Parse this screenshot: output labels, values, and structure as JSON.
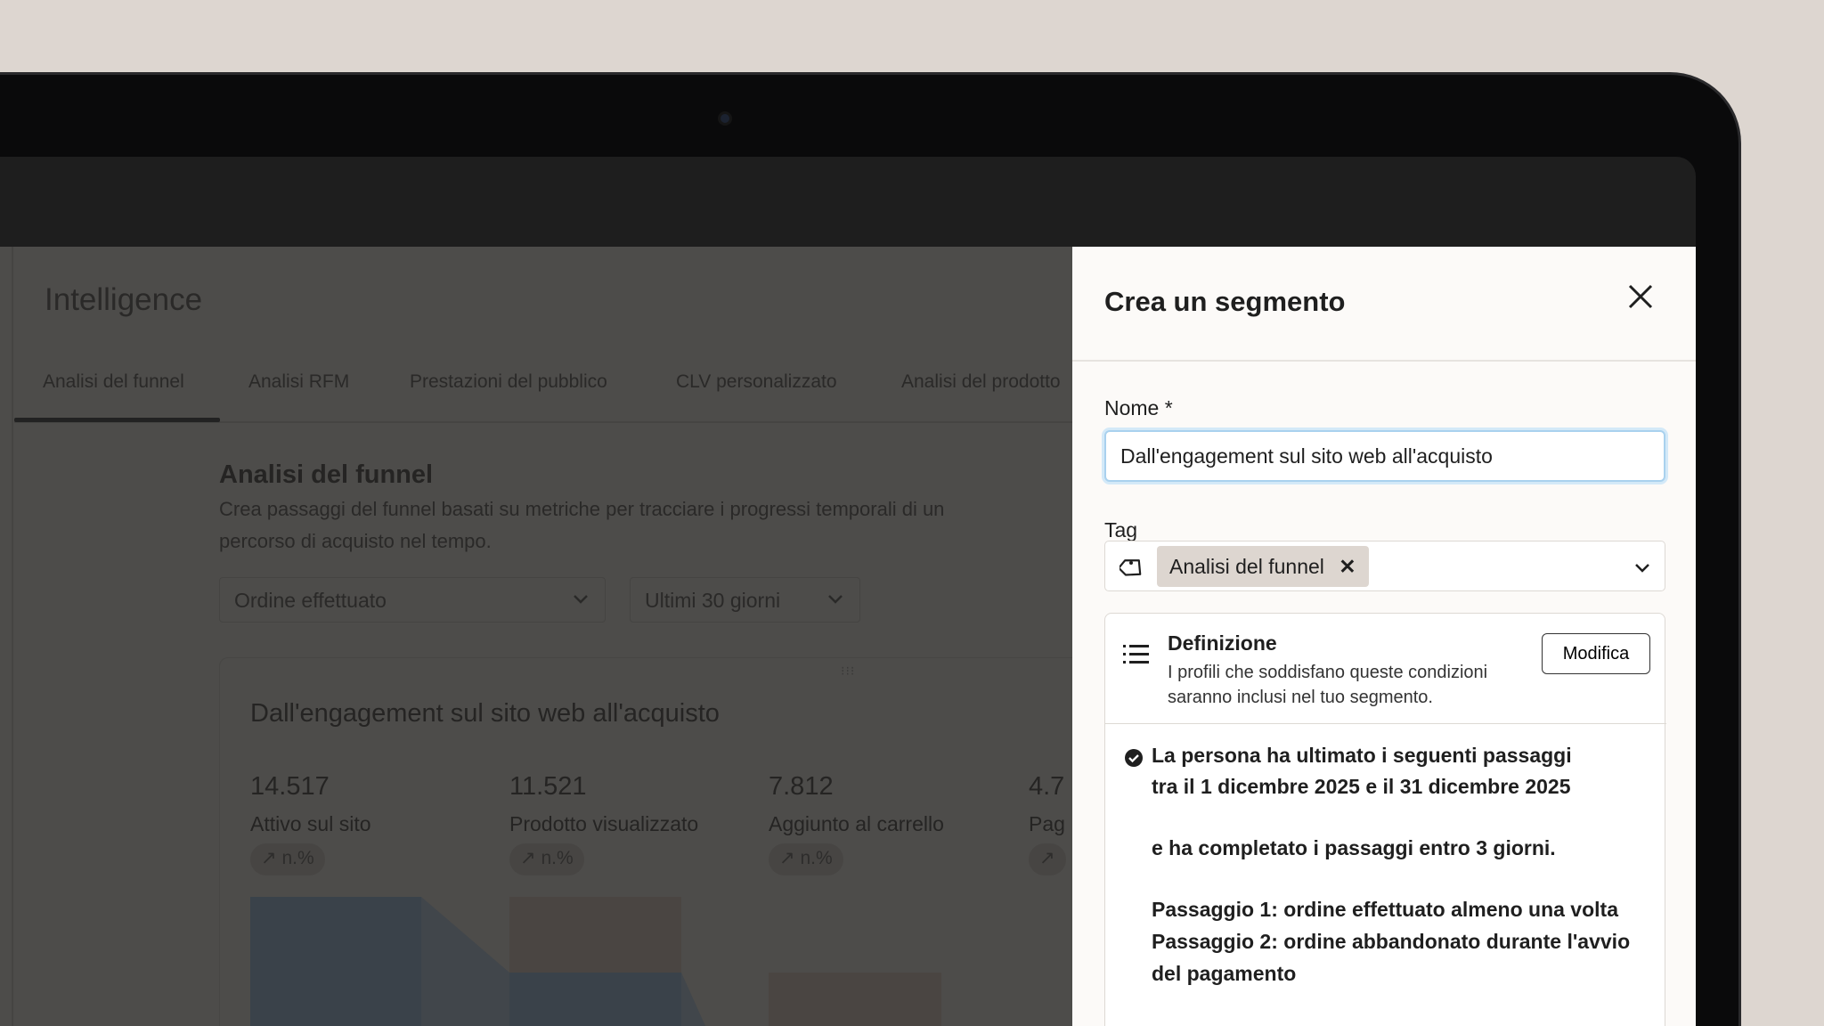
{
  "app": {
    "title": "Intelligence",
    "tabs": [
      "Analisi del funnel",
      "Analisi RFM",
      "Prestazioni del pubblico",
      "CLV personalizzato",
      "Analisi del prodotto"
    ],
    "active_tab": "Analisi del funnel",
    "section": {
      "title": "Analisi del funnel",
      "description_lines": [
        "Crea passaggi del funnel basati su metriche per tracciare i progressi temporali di un",
        "percorso di acquisto nel tempo."
      ],
      "metric_select": "Ordine effettuato",
      "period_select": "Ultimi 30 giorni"
    },
    "card": {
      "title": "Dall'engagement sul sito web all'acquisto",
      "metrics": [
        {
          "value": "14.517",
          "label": "Attivo sul sito",
          "change": "n.%"
        },
        {
          "value": "11.521",
          "label": "Prodotto visualizzato",
          "change": "n.%"
        },
        {
          "value": "7.812",
          "label": "Aggiunto al carrello",
          "change": "n.%"
        },
        {
          "value": "4.7",
          "label": "Pag",
          "change": ""
        }
      ]
    }
  },
  "panel": {
    "title": "Crea un segmento",
    "name_label": "Nome",
    "required_mark": "*",
    "name_value": "Dall'engagement sul sito web all'acquisto",
    "tag_label": "Tag",
    "tags": [
      "Analisi del funnel"
    ],
    "definition": {
      "title": "Definizione",
      "subtitle_lines": [
        "I profili che soddisfano queste condizioni",
        "saranno inclusi nel tuo segmento."
      ],
      "edit_label": "Modifica",
      "conditions": [
        "La persona ha ultimato i seguenti passaggi",
        "tra il 1 dicembre 2025 e il 31 dicembre 2025",
        "e ha completato i passaggi entro 3 giorni.",
        "Passaggio 1: ordine effettuato almeno una volta",
        "Passaggio 2: ordine abbandonato durante l'avvio",
        "del pagamento"
      ]
    }
  },
  "colors": {
    "background": "#ddd6d0",
    "panel": "#fcfaf8",
    "overlay": "#4d4c4a",
    "focus": "#a9d1ee",
    "tag_chip": "#ddd6d0"
  }
}
